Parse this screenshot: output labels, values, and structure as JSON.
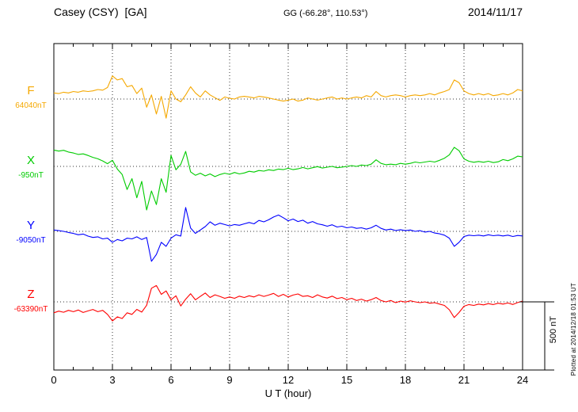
{
  "header": {
    "station": "Casey (CSY)  [GA]",
    "coords": "GG (-66.28°, 110.53°)",
    "date": "2014/11/17"
  },
  "chart_data": {
    "type": "line",
    "title": "Casey (CSY) [GA] magnetogram 2014/11/17",
    "xlabel": "U T (hour)",
    "x_range": [
      0,
      24
    ],
    "x_ticks": [
      0,
      3,
      6,
      9,
      12,
      15,
      18,
      21,
      24
    ],
    "x_tick_step": 3,
    "x_minor_tick_step": 1,
    "sample_interval_hours": 0.25,
    "grid": "dotted-vertical-at-major-ticks",
    "scale_bar": {
      "label": "500 nT",
      "nT": 500
    },
    "footnote": "Plotted at 2014/12/18 01:53 UT",
    "series": [
      {
        "name": "F",
        "color": "#f5a800",
        "baseline_label": "64040nT",
        "baseline_nT": 64040,
        "offsets_nT": [
          45,
          40,
          50,
          45,
          55,
          50,
          60,
          55,
          60,
          70,
          65,
          85,
          170,
          140,
          150,
          90,
          100,
          40,
          80,
          -60,
          30,
          -110,
          20,
          -140,
          60,
          0,
          -20,
          30,
          90,
          45,
          15,
          60,
          30,
          10,
          -10,
          15,
          5,
          0,
          15,
          20,
          15,
          8,
          20,
          15,
          8,
          0,
          -8,
          -15,
          -8,
          0,
          -15,
          -8,
          8,
          0,
          -8,
          0,
          8,
          15,
          0,
          8,
          0,
          8,
          15,
          8,
          25,
          15,
          55,
          25,
          15,
          25,
          30,
          25,
          15,
          25,
          30,
          25,
          30,
          40,
          30,
          45,
          55,
          70,
          140,
          120,
          60,
          40,
          30,
          40,
          30,
          40,
          25,
          30,
          40,
          30,
          45,
          70,
          60
        ]
      },
      {
        "name": "X",
        "color": "#00cc00",
        "baseline_label": "-950nT",
        "baseline_nT": -950,
        "offsets_nT": [
          120,
          112,
          118,
          105,
          98,
          88,
          92,
          80,
          66,
          56,
          40,
          20,
          45,
          -20,
          -60,
          -170,
          -90,
          -230,
          -110,
          -320,
          -180,
          -280,
          -90,
          -190,
          80,
          -25,
          15,
          110,
          -40,
          -65,
          -50,
          -70,
          -55,
          -75,
          -60,
          -50,
          -58,
          -45,
          -55,
          -48,
          -36,
          -42,
          -30,
          -35,
          -25,
          -30,
          -20,
          -24,
          -14,
          -24,
          -18,
          -8,
          -18,
          -10,
          -2,
          -12,
          -6,
          0,
          -10,
          -5,
          0,
          6,
          0,
          10,
          6,
          16,
          48,
          22,
          12,
          16,
          12,
          22,
          16,
          22,
          32,
          26,
          32,
          38,
          32,
          45,
          60,
          85,
          140,
          115,
          55,
          38,
          30,
          36,
          30,
          38,
          28,
          34,
          50,
          42,
          55,
          75,
          70
        ]
      },
      {
        "name": "Y",
        "color": "#0000ff",
        "baseline_label": "-9050nT",
        "baseline_nT": -9050,
        "offsets_nT": [
          10,
          5,
          0,
          -8,
          -15,
          -25,
          -20,
          -35,
          -45,
          -40,
          -55,
          -50,
          -80,
          -60,
          -70,
          -50,
          -55,
          -40,
          -60,
          -45,
          -220,
          -170,
          -80,
          -110,
          -50,
          -25,
          -35,
          175,
          25,
          -15,
          10,
          35,
          70,
          45,
          60,
          50,
          40,
          50,
          45,
          55,
          65,
          55,
          80,
          70,
          85,
          105,
          120,
          100,
          78,
          90,
          72,
          82,
          60,
          72,
          55,
          48,
          38,
          48,
          32,
          38,
          26,
          32,
          22,
          26,
          16,
          26,
          45,
          22,
          10,
          16,
          6,
          12,
          5,
          10,
          0,
          5,
          -5,
          0,
          -12,
          -18,
          -28,
          -50,
          -110,
          -80,
          -38,
          -28,
          -32,
          -28,
          -34,
          -25,
          -32,
          -28,
          -34,
          -28,
          -38,
          -30,
          -34
        ]
      },
      {
        "name": "Z",
        "color": "#ff0000",
        "baseline_label": "-63390nT",
        "baseline_nT": -63390,
        "offsets_nT": [
          -80,
          -68,
          -76,
          -62,
          -72,
          -60,
          -78,
          -66,
          -56,
          -72,
          -62,
          -92,
          -140,
          -110,
          -122,
          -80,
          -92,
          -55,
          -75,
          -25,
          100,
          120,
          55,
          80,
          15,
          45,
          -30,
          20,
          60,
          15,
          40,
          65,
          32,
          52,
          40,
          26,
          36,
          26,
          42,
          32,
          45,
          36,
          52,
          40,
          50,
          62,
          40,
          55,
          36,
          50,
          58,
          40,
          45,
          32,
          52,
          36,
          28,
          42,
          24,
          32,
          16,
          26,
          10,
          20,
          6,
          16,
          32,
          10,
          0,
          10,
          -6,
          6,
          -2,
          8,
          0,
          -6,
          0,
          -10,
          -6,
          -16,
          -26,
          -58,
          -115,
          -78,
          -32,
          -20,
          -26,
          -16,
          -22,
          -13,
          -20,
          -10,
          -16,
          -8,
          -19,
          -5,
          6
        ]
      }
    ]
  }
}
